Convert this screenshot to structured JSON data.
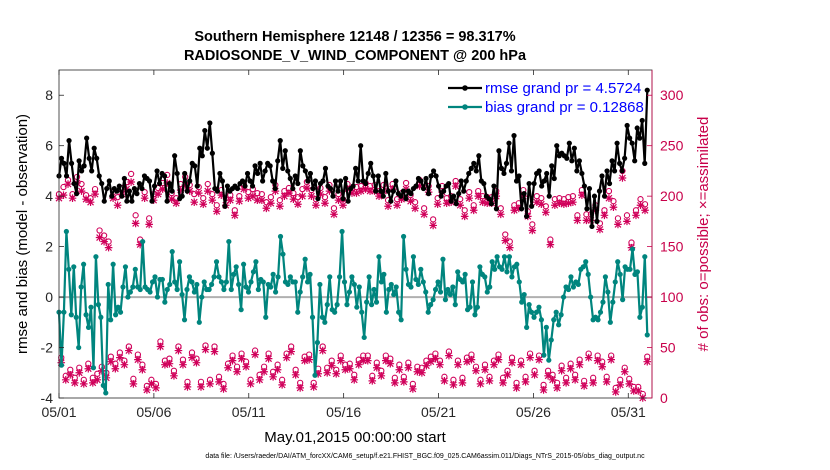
{
  "chart_data": {
    "type": "line",
    "title": "Southern Hemisphere 12148 / 12356 = 98.317%",
    "subtitle": "RADIOSONDE_V_WIND_COMPONENT @ 200 hPa",
    "xlabel": "May.01,2015 00:00:00 start",
    "ylabel_left": "rmse and bias (model - observation)",
    "ylabel_right": "# of obs: o=possible; ×=assimilated",
    "footer": "data file: /Users/raeder/DAI/ATM_forcXX/CAM6_setup/f.e21.FHIST_BGC.f09_025.CAM6assim.011/Diags_NTrS_2015-05/obs_diag_output.nc",
    "x_ticks": [
      "05/01",
      "05/06",
      "05/11",
      "05/16",
      "05/21",
      "05/26",
      "05/31"
    ],
    "y_left_ticks": [
      "-4",
      "-2",
      "0",
      "2",
      "4",
      "6",
      "8"
    ],
    "y_right_ticks": [
      "0",
      "50",
      "100",
      "150",
      "200",
      "250",
      "300"
    ],
    "xlim_days": [
      0,
      31.25
    ],
    "ylim_left": [
      -4,
      9
    ],
    "ylim_right": [
      0,
      325
    ],
    "grid": false,
    "legend_position": "top-right",
    "colors": {
      "rmse": "#000000",
      "bias": "#00857e",
      "obs": "#d0005a",
      "zero_line": "#b0b0b0",
      "right_axis": "#c8004a",
      "legend_text": "#0000ff"
    },
    "series": [
      {
        "name": "rmse grand pr = 4.5724",
        "axis": "left",
        "values": [
          4.8,
          5.5,
          5.3,
          4.8,
          6.2,
          5.3,
          4.5,
          4.1,
          5.4,
          5.0,
          5.2,
          6.3,
          5.5,
          5.0,
          5.9,
          5.5,
          4.8,
          4.5,
          3.8,
          4.3,
          4.6,
          4.0,
          4.3,
          4.2,
          4.4,
          4.0,
          4.7,
          3.8,
          4.2,
          3.8,
          4.3,
          4.1,
          4.5,
          4.3,
          4.8,
          4.7,
          4.6,
          3.8,
          4.4,
          5.0,
          4.5,
          4.9,
          4.8,
          3.8,
          4.5,
          4.2,
          5.6,
          4.9,
          3.9,
          4.0,
          4.9,
          4.2,
          4.6,
          5.3,
          5.2,
          4.4,
          5.9,
          5.6,
          6.6,
          5.9,
          6.9,
          5.7,
          4.3,
          4.2,
          4.9,
          4.6,
          3.6,
          4.4,
          4.2,
          4.3,
          4.4,
          4.3,
          4.5,
          4.6,
          4.4,
          4.9,
          4.6,
          4.4,
          5.2,
          4.9,
          5.3,
          4.6,
          5.0,
          5.3,
          5.2,
          4.6,
          4.3,
          5.4,
          6.2,
          5.1,
          5.8,
          5.0,
          4.7,
          4.3,
          4.8,
          4.5,
          5.8,
          5.2,
          5.0,
          4.6,
          4.9,
          4.3,
          4.6,
          3.9,
          4.5,
          4.6,
          5.1,
          4.4,
          4.3,
          4.0,
          4.6,
          4.2,
          4.6,
          3.9,
          4.7,
          3.8,
          4.3,
          4.4,
          5.1,
          4.6,
          6.0,
          4.6,
          4.5,
          4.9,
          5.3,
          4.8,
          4.2,
          4.8,
          4.2,
          4.0,
          4.9,
          4.2,
          3.8,
          4.2,
          4.6,
          4.1,
          4.0,
          4.2,
          3.9,
          4.2,
          4.1,
          4.3,
          4.4,
          4.7,
          4.6,
          4.3,
          4.7,
          4.1,
          4.8,
          5.0,
          4.8,
          4.4,
          4.0,
          4.2,
          4.4,
          4.5,
          3.8,
          4.0,
          3.7,
          4.1,
          4.6,
          4.2,
          4.6,
          4.9,
          5.1,
          5.3,
          5.0,
          5.6,
          4.6,
          4.5,
          4.0,
          3.9,
          3.7,
          4.4,
          3.5,
          5.8,
          5.1,
          4.9,
          5.3,
          6.1,
          5.0,
          6.4,
          4.6,
          4.8,
          3.5,
          4.1,
          3.2,
          4.5,
          3.6,
          4.5,
          4.9,
          5.0,
          4.4,
          4.6,
          4.9,
          4.0,
          5.2,
          4.7,
          6.0,
          5.6,
          5.7,
          5.6,
          5.5,
          6.1,
          5.4,
          5.9,
          5.0,
          5.4,
          4.9,
          4.4,
          3.5,
          4.3,
          2.8,
          4.0,
          3.0,
          4.2,
          4.8,
          4.0,
          5.0,
          4.5,
          5.4,
          5.0,
          6.1,
          5.3,
          5.0,
          5.5,
          6.8,
          6.3,
          6.1,
          5.4,
          6.7,
          6.3,
          7.0,
          5.3,
          8.2
        ]
      },
      {
        "name": "bias grand pr = 0.12868",
        "axis": "left",
        "values": [
          -0.6,
          -2.7,
          -0.6,
          2.6,
          1.1,
          -0.7,
          1.2,
          -0.8,
          -2.0,
          0.4,
          1.3,
          -0.7,
          -1.2,
          -0.4,
          -2.8,
          1.6,
          -0.3,
          -0.8,
          -3.5,
          -3.8,
          0.5,
          -0.9,
          1.3,
          -0.7,
          -0.4,
          -0.6,
          0.4,
          1.2,
          0.0,
          0.2,
          0.4,
          1.1,
          0.4,
          0.3,
          2.2,
          0.4,
          0.3,
          0.2,
          0.6,
          0.8,
          0.0,
          0.7,
          0.7,
          -0.2,
          0.3,
          0.5,
          1.8,
          0.6,
          0.3,
          1.4,
          0.1,
          -0.9,
          0.3,
          0.8,
          0.6,
          0.2,
          0.5,
          -1.0,
          0.0,
          0.6,
          0.3,
          0.3,
          0.5,
          0.8,
          1.4,
          0.8,
          0.6,
          0.3,
          0.6,
          2.2,
          0.3,
          0.9,
          1.2,
          0.5,
          -0.5,
          1.3,
          0.4,
          0.2,
          0.6,
          1.0,
          1.4,
          0.3,
          0.7,
          0.6,
          -0.8,
          0.5,
          0.4,
          0.9,
          0.2,
          0.8,
          2.4,
          1.7,
          0.6,
          0.5,
          0.8,
          0.6,
          0.6,
          -0.6,
          0.2,
          0.8,
          1.5,
          0.6,
          0.9,
          -0.8,
          -3.1,
          -1.8,
          0.5,
          -0.8,
          -1.0,
          -0.3,
          0.8,
          -0.5,
          -0.6,
          -0.3,
          0.8,
          2.6,
          0.6,
          -0.3,
          0.2,
          0.8,
          0.5,
          -0.4,
          0.4,
          -0.6,
          -1.6,
          -0.2,
          0.8,
          -0.3,
          0.3,
          -0.2,
          1.6,
          0.6,
          0.9,
          -0.6,
          0.3,
          0.5,
          0.1,
          0.4,
          -0.6,
          -0.9,
          2.4,
          1.1,
          0.5,
          0.4,
          1.6,
          0.7,
          0.5,
          1.1,
          0.6,
          0.2,
          -0.6,
          -0.3,
          -0.1,
          0.3,
          0.6,
          0.2,
          1.5,
          -0.1,
          0.3,
          0.1,
          0.4,
          -0.3,
          1.0,
          0.7,
          0.6,
          0.9,
          -0.5,
          -0.4,
          0.6,
          -0.7,
          -0.4,
          1.2,
          0.9,
          0.8,
          0.2,
          0.4,
          1.4,
          1.1,
          1.6,
          1.2,
          1.1,
          1.6,
          1.0,
          1.6,
          0.8,
          1.2,
          1.3,
          0.6,
          -0.2,
          0.1,
          -1.2,
          -0.3,
          -0.6,
          -0.8,
          -0.6,
          -0.4,
          -0.9,
          -2.3,
          -1.2,
          -2.5,
          -1.7,
          -0.9,
          -0.6,
          -1.1,
          -0.7,
          0.0,
          0.4,
          0.3,
          0.8,
          0.4,
          0.6,
          0.5,
          1.1,
          1.2,
          1.4,
          0.9,
          0.0,
          -0.9,
          -0.8,
          -0.9,
          -0.6,
          -0.2,
          0.8,
          0.2,
          -1.0,
          -0.2,
          0.6,
          1.4,
          0.9,
          -0.1,
          1.2,
          1.1,
          1.1,
          1.9,
          0.9,
          1.0,
          -0.8,
          -0.4,
          1.6,
          -1.5
        ]
      },
      {
        "name": "possible",
        "axis": "right",
        "values": [
          202,
          40,
          209,
          22,
          216,
          28,
          202,
          20,
          219,
          30,
          212,
          18,
          201,
          34,
          198,
          20,
          207,
          24,
          166,
          31,
          161,
          25,
          155,
          41,
          204,
          34,
          199,
          45,
          208,
          37,
          214,
          51,
          222,
          19,
          181,
          43,
          157,
          33,
          204,
          12,
          178,
          18,
          202,
          14,
          208,
          56,
          213,
          37,
          221,
          39,
          203,
          27,
          198,
          51,
          212,
          38,
          219,
          16,
          211,
          45,
          202,
          39,
          209,
          16,
          198,
          52,
          212,
          18,
          202,
          51,
          191,
          21,
          206,
          14,
          198,
          34,
          201,
          42,
          186,
          31,
          200,
          44,
          212,
          36,
          204,
          18,
          207,
          47,
          203,
          23,
          202,
          31,
          194,
          44,
          199,
          26,
          211,
          33,
          196,
          18,
          205,
          44,
          208,
          51,
          203,
          28,
          199,
          15,
          207,
          41,
          214,
          43,
          206,
          15,
          197,
          29,
          208,
          51,
          199,
          30,
          211,
          37,
          188,
          28,
          202,
          42,
          197,
          33,
          212,
          34,
          208,
          23,
          209,
          38,
          210,
          42,
          213,
          42,
          210,
          22,
          211,
          35,
          205,
          27,
          211,
          42,
          196,
          39,
          212,
          20,
          197,
          33,
          203,
          21,
          213,
          35,
          201,
          14,
          194,
          31,
          216,
          30,
          188,
          37,
          210,
          41,
          177,
          44,
          198,
          37,
          210,
          21,
          198,
          46,
          200,
          18,
          215,
          37,
          197,
          20,
          186,
          40,
          204,
          43,
          191,
          31,
          205,
          18,
          200,
          33,
          199,
          21,
          199,
          37,
          205,
          43,
          188,
          20,
          162,
          27,
          155,
          40,
          191,
          15,
          193,
          37,
          206,
          21,
          185,
          44,
          172,
          27,
          200,
          42,
          198,
          13,
          190,
          27,
          157,
          23,
          197,
          15,
          198,
          32,
          197,
          20,
          199,
          34,
          200,
          23,
          181,
          38,
          206,
          17,
          182,
          44,
          182,
          20,
          191,
          42,
          173,
          36,
          186,
          21,
          205,
          42,
          195,
          10,
          178,
          18,
          225,
          30,
          181,
          19,
          154,
          11,
          186,
          11,
          197,
          4,
          192,
          41
        ]
      },
      {
        "name": "assimilated",
        "axis": "right",
        "values": [
          198,
          35,
          201,
          18,
          212,
          23,
          198,
          15,
          213,
          25,
          205,
          14,
          197,
          29,
          194,
          15,
          202,
          18,
          159,
          27,
          155,
          20,
          149,
          36,
          198,
          29,
          191,
          40,
          202,
          33,
          207,
          47,
          214,
          14,
          173,
          38,
          152,
          28,
          198,
          8,
          172,
          14,
          196,
          10,
          202,
          51,
          207,
          33,
          213,
          34,
          197,
          22,
          193,
          47,
          206,
          33,
          211,
          11,
          205,
          40,
          194,
          35,
          203,
          11,
          192,
          48,
          205,
          14,
          196,
          46,
          185,
          16,
          201,
          9,
          191,
          30,
          196,
          37,
          181,
          26,
          195,
          39,
          207,
          31,
          198,
          14,
          200,
          43,
          196,
          18,
          196,
          26,
          188,
          39,
          193,
          21,
          205,
          28,
          190,
          13,
          200,
          40,
          203,
          46,
          197,
          23,
          192,
          10,
          200,
          37,
          208,
          38,
          200,
          11,
          191,
          24,
          202,
          47,
          193,
          25,
          205,
          32,
          182,
          24,
          196,
          37,
          191,
          28,
          207,
          29,
          203,
          18,
          203,
          33,
          205,
          37,
          207,
          37,
          205,
          17,
          205,
          30,
          200,
          22,
          205,
          37,
          190,
          34,
          207,
          15,
          191,
          28,
          197,
          16,
          207,
          30,
          195,
          9,
          188,
          26,
          210,
          25,
          182,
          32,
          204,
          36,
          171,
          39,
          192,
          33,
          204,
          17,
          193,
          42,
          194,
          13,
          210,
          33,
          191,
          15,
          180,
          36,
          198,
          38,
          186,
          27,
          200,
          14,
          194,
          28,
          193,
          17,
          193,
          33,
          200,
          38,
          182,
          15,
          156,
          23,
          149,
          35,
          186,
          10,
          188,
          33,
          200,
          16,
          180,
          40,
          166,
          23,
          194,
          38,
          192,
          8,
          184,
          22,
          152,
          18,
          191,
          10,
          193,
          27,
          192,
          15,
          193,
          29,
          194,
          18,
          176,
          33,
          201,
          12,
          176,
          40,
          176,
          15,
          186,
          37,
          167,
          31,
          181,
          16,
          198,
          38,
          189,
          6,
          172,
          13,
          218,
          26,
          175,
          14,
          149,
          7,
          181,
          7,
          191,
          0,
          186,
          36
        ]
      }
    ]
  }
}
